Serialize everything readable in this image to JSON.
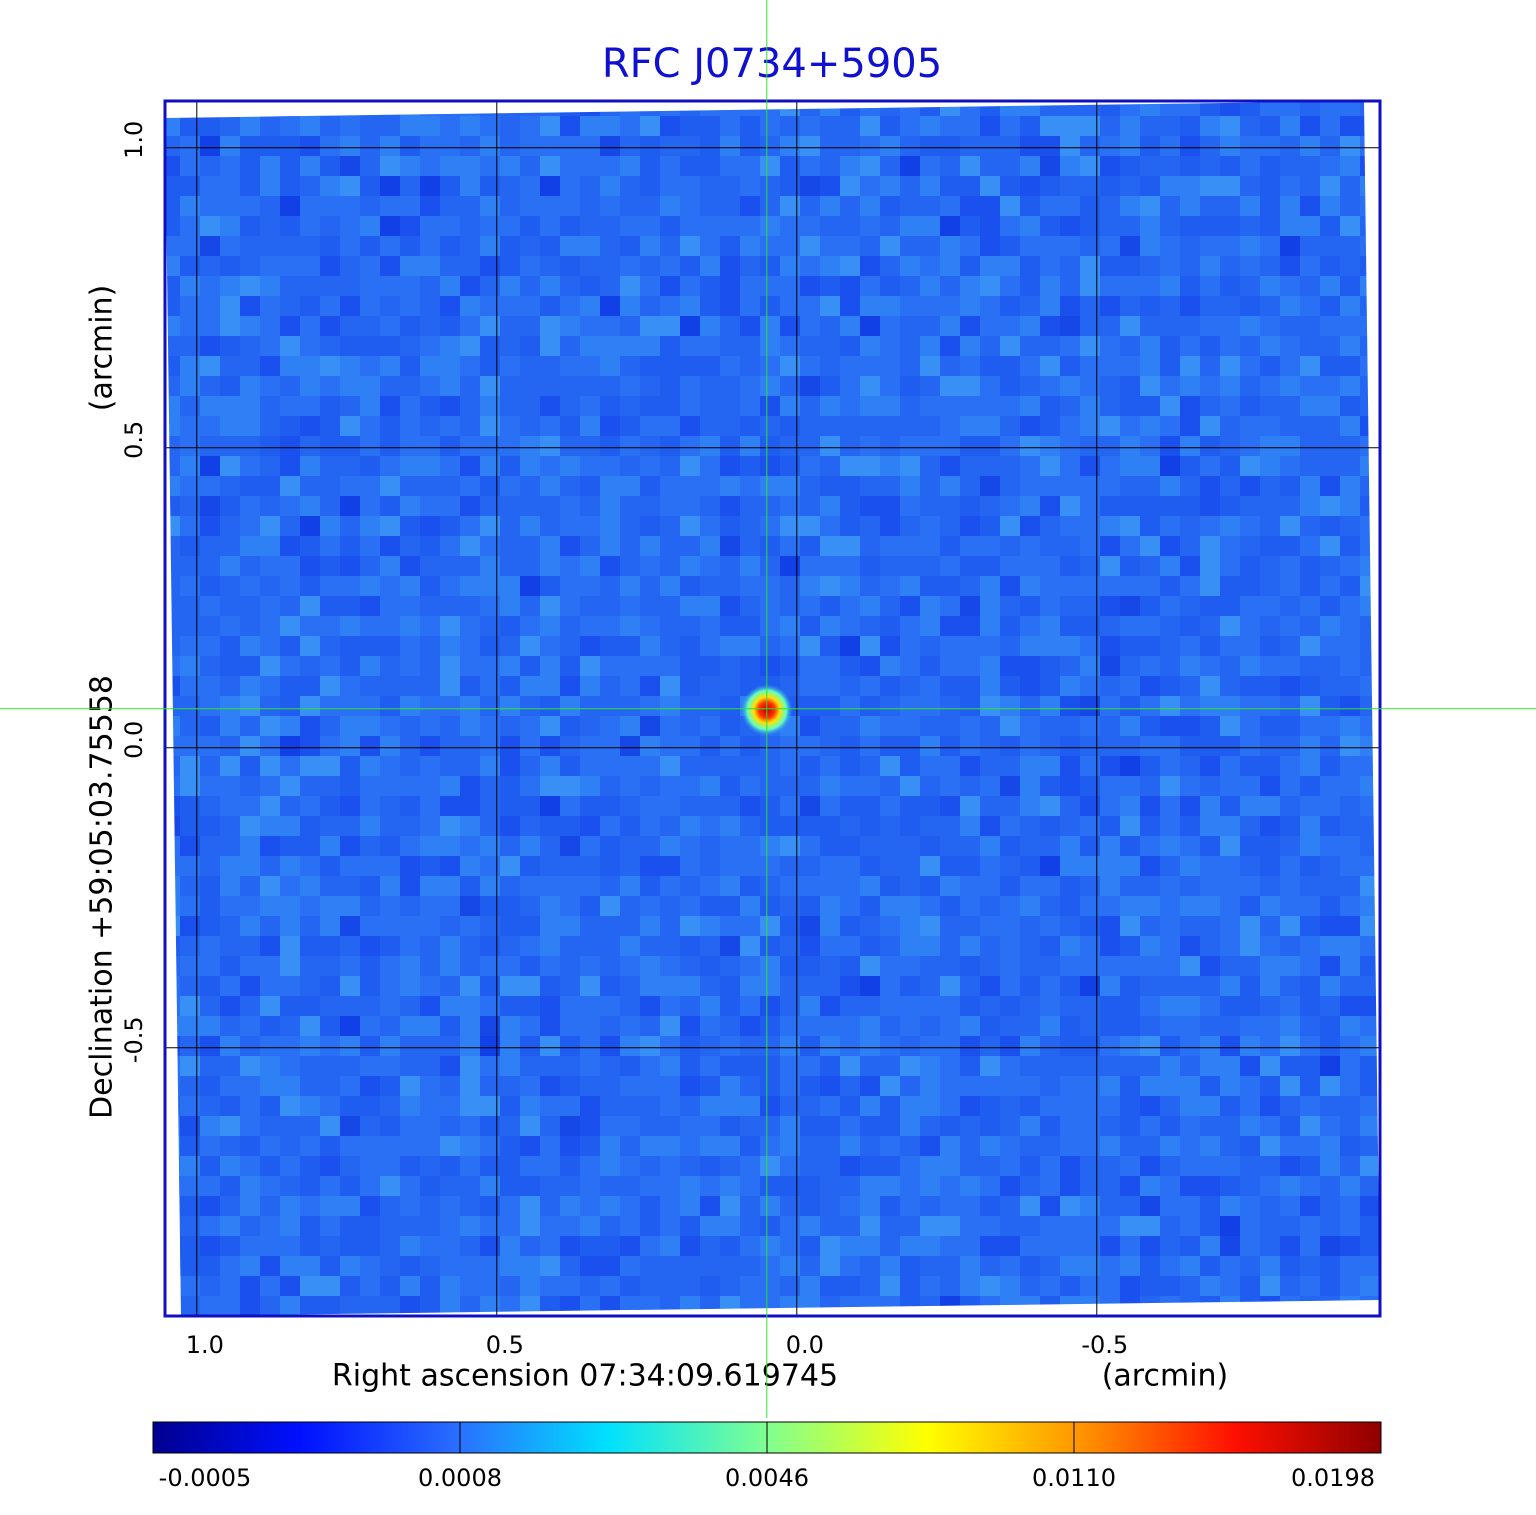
{
  "chart_data": {
    "type": "image",
    "title": "RFC J0734+5905",
    "xlabel": "Right ascension  07:34:09.619745",
    "xunit": "(arcmin)",
    "ylabel": "Declination  +59:05:03.75558",
    "yunit": "(arcmin)",
    "xlim": [
      1.053,
      -0.972
    ],
    "ylim": [
      -0.947,
      1.078
    ],
    "xticks": [
      {
        "value": 1,
        "label": "1.0"
      },
      0.5,
      {
        "value": 0,
        "label": "0.0"
      },
      -0.5
    ],
    "yticks": [
      {
        "value": 1,
        "label": "1.0"
      },
      0.5,
      {
        "value": 0,
        "label": "0.0"
      },
      -0.5
    ],
    "grid": true,
    "crosshair": {
      "x": 0.05,
      "y": 0.065
    },
    "source": {
      "x": 0.05,
      "y": 0.063,
      "peak": 0.0198
    },
    "colorbar": {
      "clim": [
        -0.0005,
        0.0198
      ],
      "ticks": [
        -0.0005,
        0.0008,
        0.0046,
        {
          "value": 0.011,
          "label": "0.0110"
        },
        0.0198
      ]
    }
  }
}
